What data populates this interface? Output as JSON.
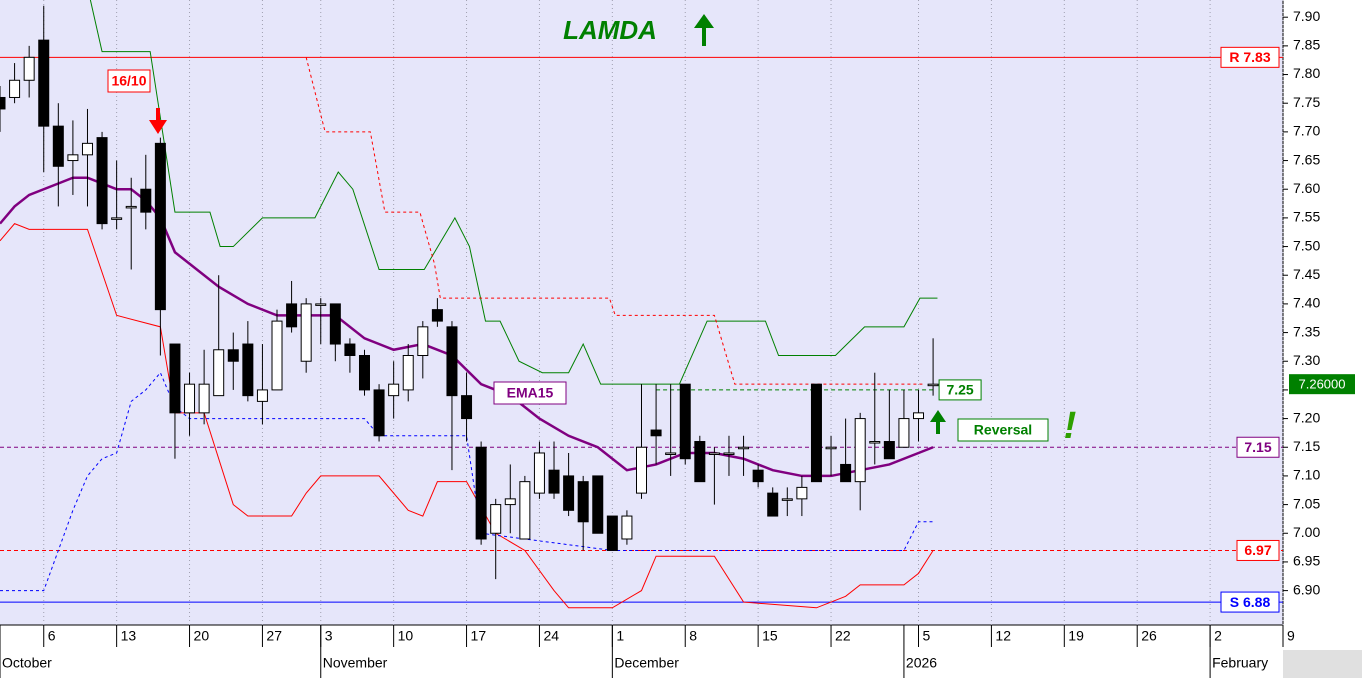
{
  "chart_data": {
    "type": "candlestick",
    "title": "LAMDA",
    "x": [
      -3,
      -2,
      -1,
      0,
      1,
      2,
      3,
      4,
      5,
      6,
      7,
      8,
      9,
      10,
      11,
      12,
      13,
      14,
      15,
      16,
      17,
      18,
      19,
      20,
      21,
      22,
      23,
      24,
      25,
      26,
      27,
      28,
      29,
      30,
      31,
      32,
      33,
      34,
      35,
      36,
      37,
      38,
      39,
      40,
      41,
      42,
      43,
      44,
      45,
      46,
      47,
      48,
      49,
      50,
      51,
      52,
      53,
      54,
      55,
      56,
      57,
      58,
      59,
      60,
      61
    ],
    "open": [
      7.76,
      7.76,
      7.79,
      7.86,
      7.71,
      7.65,
      7.66,
      7.69,
      7.55,
      7.57,
      7.6,
      7.68,
      7.33,
      7.21,
      7.21,
      7.24,
      7.32,
      7.33,
      7.23,
      7.25,
      7.4,
      7.3,
      7.4,
      7.4,
      7.33,
      7.31,
      7.25,
      7.24,
      7.25,
      7.31,
      7.39,
      7.36,
      7.24,
      7.15,
      7.0,
      7.05,
      6.99,
      7.07,
      7.11,
      7.1,
      7.09,
      7.1,
      7.03,
      6.99,
      7.07,
      7.18,
      7.14,
      7.26,
      7.16,
      7.14,
      7.14,
      7.15,
      7.11,
      7.07,
      7.06,
      7.06,
      7.26,
      7.15,
      7.12,
      7.09,
      7.16,
      7.16,
      7.15,
      7.2,
      7.26
    ],
    "high": [
      7.78,
      7.82,
      7.85,
      7.92,
      7.75,
      7.72,
      7.74,
      7.7,
      7.65,
      7.62,
      7.66,
      7.69,
      7.33,
      7.28,
      7.32,
      7.45,
      7.35,
      7.37,
      7.33,
      7.39,
      7.44,
      7.41,
      7.41,
      7.4,
      7.34,
      7.32,
      7.26,
      7.3,
      7.33,
      7.37,
      7.41,
      7.37,
      7.28,
      7.16,
      7.06,
      7.12,
      7.1,
      7.16,
      7.16,
      7.14,
      7.1,
      7.1,
      7.03,
      7.04,
      7.26,
      7.26,
      7.26,
      7.26,
      7.17,
      7.15,
      7.17,
      7.17,
      7.12,
      7.08,
      7.08,
      7.1,
      7.26,
      7.17,
      7.2,
      7.21,
      7.28,
      7.25,
      7.25,
      7.25,
      7.34
    ],
    "low": [
      7.7,
      7.75,
      7.76,
      7.63,
      7.57,
      7.59,
      7.57,
      7.53,
      7.53,
      7.46,
      7.53,
      7.31,
      7.13,
      7.17,
      7.19,
      7.24,
      7.25,
      7.23,
      7.19,
      7.25,
      7.35,
      7.28,
      7.33,
      7.3,
      7.28,
      7.24,
      7.16,
      7.2,
      7.23,
      7.27,
      7.36,
      7.11,
      7.16,
      6.98,
      6.92,
      7.0,
      6.99,
      7.06,
      7.06,
      7.03,
      6.97,
      7.0,
      6.97,
      6.98,
      7.06,
      7.12,
      7.1,
      7.12,
      7.09,
      7.05,
      7.1,
      7.1,
      7.08,
      7.03,
      7.03,
      7.03,
      7.09,
      7.1,
      7.09,
      7.04,
      7.12,
      7.13,
      7.15,
      7.16,
      7.24
    ],
    "close": [
      7.74,
      7.79,
      7.83,
      7.71,
      7.64,
      7.66,
      7.68,
      7.54,
      7.55,
      7.57,
      7.56,
      7.39,
      7.21,
      7.26,
      7.26,
      7.32,
      7.3,
      7.24,
      7.25,
      7.37,
      7.36,
      7.4,
      7.4,
      7.33,
      7.31,
      7.25,
      7.17,
      7.26,
      7.31,
      7.36,
      7.37,
      7.24,
      7.2,
      6.99,
      7.05,
      7.06,
      7.09,
      7.14,
      7.07,
      7.04,
      7.02,
      7.0,
      6.97,
      7.03,
      7.15,
      7.17,
      7.14,
      7.13,
      7.09,
      7.14,
      7.14,
      7.15,
      7.09,
      7.03,
      7.06,
      7.08,
      7.09,
      7.15,
      7.09,
      7.2,
      7.16,
      7.13,
      7.2,
      7.21,
      7.26
    ],
    "last_price": 7.26,
    "last_price_label": "7.26000",
    "series": [
      {
        "name": "EMA15",
        "color": "#800080",
        "style": "solid",
        "width": 2.5,
        "x": [
          -3,
          -2,
          -1,
          1,
          2,
          3,
          5,
          6,
          7,
          8,
          9,
          10,
          12,
          14,
          16,
          20,
          22,
          24,
          26,
          28,
          30,
          32,
          34,
          36,
          38,
          40,
          42,
          44,
          46,
          48,
          50,
          52,
          54,
          56,
          58,
          60,
          61
        ],
        "values": [
          7.54,
          7.57,
          7.59,
          7.61,
          7.62,
          7.62,
          7.6,
          7.6,
          7.58,
          7.55,
          7.49,
          7.47,
          7.43,
          7.4,
          7.38,
          7.38,
          7.34,
          7.32,
          7.33,
          7.31,
          7.26,
          7.24,
          7.2,
          7.17,
          7.15,
          7.11,
          7.12,
          7.14,
          7.14,
          7.13,
          7.11,
          7.1,
          7.1,
          7.11,
          7.12,
          7.14,
          7.15
        ]
      },
      {
        "color": "#008000",
        "style": "solid",
        "width": 1,
        "x": [
          3.2,
          4,
          7.3,
          9,
          11.4,
          12.1,
          13,
          15,
          18.6,
          20.2,
          21.2,
          23,
          26.1,
          28.2,
          29.2,
          30.3,
          31.3,
          32.6,
          34.2,
          36,
          37,
          38.2,
          43.6,
          45.5,
          49.5,
          50.4,
          54.3,
          56.3,
          59,
          60.1,
          61.3
        ],
        "values": [
          7.93,
          7.84,
          7.84,
          7.56,
          7.56,
          7.5,
          7.5,
          7.55,
          7.55,
          7.63,
          7.6,
          7.46,
          7.46,
          7.55,
          7.5,
          7.37,
          7.37,
          7.3,
          7.28,
          7.28,
          7.33,
          7.26,
          7.26,
          7.37,
          7.37,
          7.31,
          7.31,
          7.36,
          7.36,
          7.41,
          7.41
        ]
      },
      {
        "color": "#ff0000",
        "style": "dotted",
        "width": 1,
        "x": [
          18,
          19.3,
          22.4,
          23.4,
          25.8,
          26.8,
          27.2,
          38.8,
          39.2,
          46,
          47.4,
          60.4
        ],
        "values": [
          7.83,
          7.7,
          7.7,
          7.56,
          7.56,
          7.47,
          7.41,
          7.41,
          7.38,
          7.38,
          7.26,
          7.26
        ]
      },
      {
        "color": "#ff0000",
        "style": "solid",
        "width": 1,
        "x": [
          -3,
          -2,
          -1,
          3,
          5,
          8,
          9,
          11,
          13,
          14,
          17,
          18,
          19,
          23,
          25,
          26,
          27,
          29,
          31,
          33,
          35,
          36,
          39,
          41,
          42,
          46,
          48,
          53,
          55,
          56,
          59,
          60,
          61
        ],
        "values": [
          7.51,
          7.54,
          7.53,
          7.53,
          7.38,
          7.36,
          7.21,
          7.21,
          7.05,
          7.03,
          7.03,
          7.07,
          7.1,
          7.1,
          7.04,
          7.03,
          7.09,
          7.09,
          7.0,
          6.97,
          6.9,
          6.87,
          6.87,
          6.9,
          6.96,
          6.96,
          6.88,
          6.87,
          6.89,
          6.91,
          6.91,
          6.93,
          6.97
        ]
      },
      {
        "color": "#0000ff",
        "style": "dotted",
        "width": 1,
        "x": [
          -3,
          0,
          1,
          2,
          3,
          4,
          5,
          6,
          7,
          8,
          9,
          10,
          22,
          23,
          29,
          30,
          39,
          59,
          60,
          61
        ],
        "values": [
          6.9,
          6.9,
          6.97,
          7.04,
          7.1,
          7.13,
          7.14,
          7.23,
          7.25,
          7.28,
          7.22,
          7.2,
          7.2,
          7.17,
          7.17,
          7.0,
          6.97,
          6.97,
          7.02,
          7.02
        ]
      }
    ],
    "levels": [
      {
        "label": "R 7.83",
        "value": 7.83,
        "color": "#ff0000",
        "style": "solid"
      },
      {
        "label": "7.15",
        "value": 7.15,
        "color": "#800080",
        "style": "dashed"
      },
      {
        "label": "6.97",
        "value": 6.97,
        "color": "#ff0000",
        "style": "dashed"
      },
      {
        "label": "S 6.88",
        "value": 6.88,
        "color": "#0000ff",
        "style": "solid"
      },
      {
        "label": "7.25",
        "value": 7.25,
        "color": "#008000",
        "style": "dashed",
        "x": [
          42,
          61
        ]
      }
    ],
    "annotations": {
      "signal_date": "16/10",
      "ema": "EMA15",
      "reversal": "Reversal",
      "exclaim": "!"
    },
    "xlim": [
      -3,
      85
    ],
    "ylim": [
      6.84,
      7.93
    ],
    "yticks": [
      {
        "value": 6.9,
        "label": "6.90"
      },
      {
        "value": 6.95,
        "label": "6.95"
      },
      {
        "value": 7.0,
        "label": "7.00"
      },
      {
        "value": 7.05,
        "label": "7.05"
      },
      {
        "value": 7.1,
        "label": "7.10"
      },
      {
        "value": 7.15,
        "label": "7.15"
      },
      {
        "value": 7.2,
        "label": "7.20"
      },
      {
        "value": 7.25,
        "label": "7.25"
      },
      {
        "value": 7.3,
        "label": "7.30"
      },
      {
        "value": 7.35,
        "label": "7.35"
      },
      {
        "value": 7.4,
        "label": "7.40"
      },
      {
        "value": 7.45,
        "label": "7.45"
      },
      {
        "value": 7.5,
        "label": "7.50"
      },
      {
        "value": 7.55,
        "label": "7.55"
      },
      {
        "value": 7.6,
        "label": "7.60"
      },
      {
        "value": 7.65,
        "label": "7.65"
      },
      {
        "value": 7.7,
        "label": "7.70"
      },
      {
        "value": 7.75,
        "label": "7.75"
      },
      {
        "value": 7.8,
        "label": "7.80"
      },
      {
        "value": 7.85,
        "label": "7.85"
      },
      {
        "value": 7.9,
        "label": "7.90"
      }
    ],
    "xticks": [
      {
        "value": 0,
        "label": "6"
      },
      {
        "value": 5,
        "label": "13"
      },
      {
        "value": 10,
        "label": "20"
      },
      {
        "value": 15,
        "label": "27"
      },
      {
        "value": 19,
        "label": "3"
      },
      {
        "value": 24,
        "label": "10"
      },
      {
        "value": 29,
        "label": "17"
      },
      {
        "value": 34,
        "label": "24"
      },
      {
        "value": 39,
        "label": "1"
      },
      {
        "value": 44,
        "label": "8"
      },
      {
        "value": 49,
        "label": "15"
      },
      {
        "value": 54,
        "label": "22"
      },
      {
        "value": 60,
        "label": "5"
      },
      {
        "value": 65,
        "label": "12"
      },
      {
        "value": 70,
        "label": "19"
      },
      {
        "value": 75,
        "label": "26"
      },
      {
        "value": 80,
        "label": "2"
      },
      {
        "value": 85,
        "label": "9"
      }
    ],
    "month_ticks": [
      {
        "value": -3,
        "label": "October"
      },
      {
        "value": 19,
        "label": "November"
      },
      {
        "value": 39,
        "label": "December"
      },
      {
        "value": 59,
        "label": "2026"
      },
      {
        "value": 80,
        "label": "February"
      }
    ],
    "grid": true
  }
}
